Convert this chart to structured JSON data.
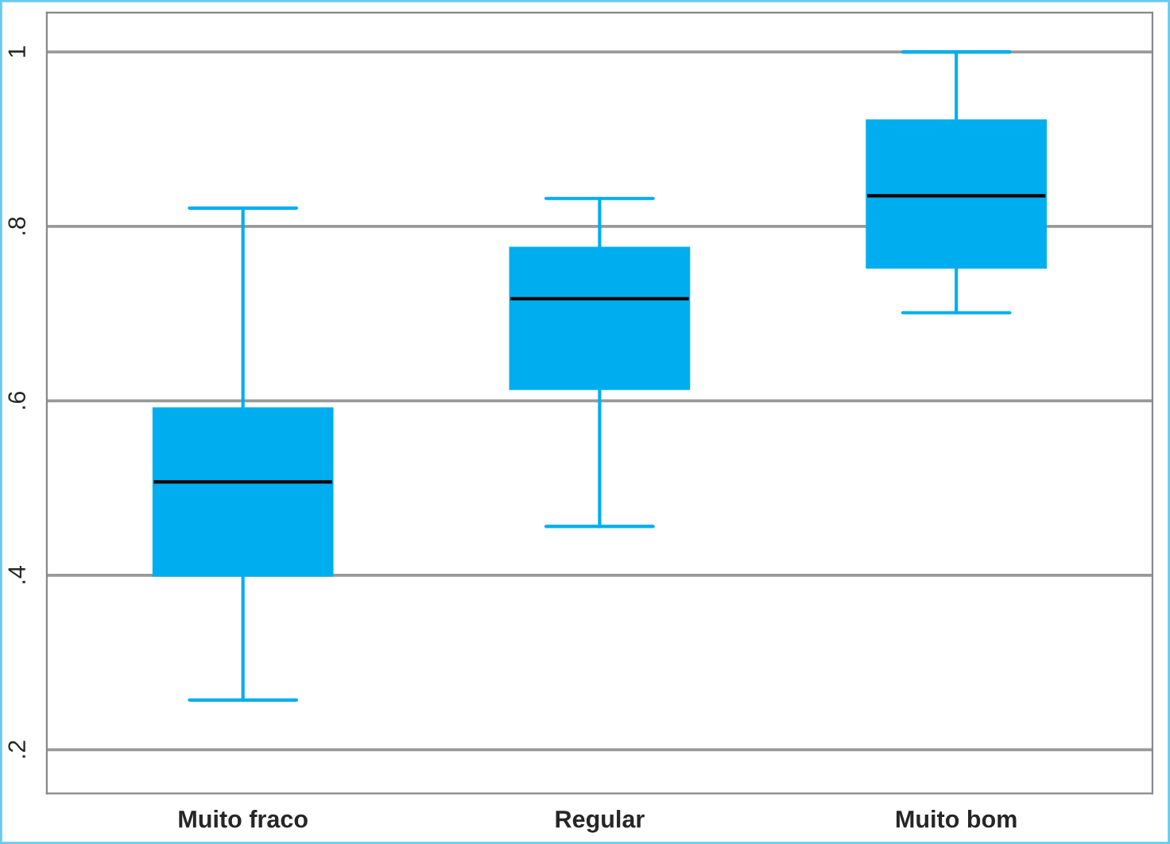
{
  "chart_data": {
    "type": "box",
    "categories": [
      "Muito fraco",
      "Regular",
      "Muito bom"
    ],
    "boxes": [
      {
        "low": 0.257,
        "q1": 0.4,
        "median": 0.507,
        "q3": 0.591,
        "high": 0.821
      },
      {
        "low": 0.456,
        "q1": 0.614,
        "median": 0.717,
        "q3": 0.775,
        "high": 0.832
      },
      {
        "low": 0.701,
        "q1": 0.753,
        "median": 0.835,
        "q3": 0.921,
        "high": 1.0
      }
    ],
    "color": "#00aeef",
    "ylim": [
      0.15,
      1.045
    ],
    "yticks": [
      {
        "value": 0.2,
        "label": ".2"
      },
      {
        "value": 0.4,
        "label": ".4"
      },
      {
        "value": 0.6,
        "label": ".6"
      },
      {
        "value": 0.8,
        "label": ".8"
      },
      1
    ],
    "grid": "y",
    "legend": false
  }
}
